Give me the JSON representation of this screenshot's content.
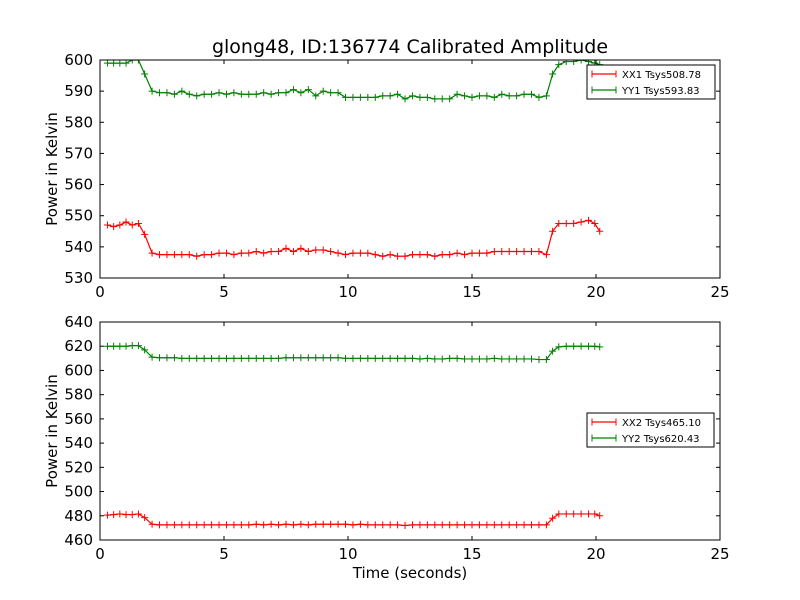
{
  "figure": {
    "title": "glong48, ID:136774 Calibrated Amplitude",
    "xlabel": "Time (seconds)"
  },
  "chart_data": [
    {
      "type": "line",
      "title": "glong48, ID:136774 Calibrated Amplitude",
      "xlabel": "",
      "ylabel": "Power in Kelvin",
      "xlim": [
        0,
        25
      ],
      "ylim": [
        530,
        600
      ],
      "xticks": [
        0,
        5,
        10,
        15,
        20,
        25
      ],
      "yticks": [
        530,
        540,
        550,
        560,
        570,
        580,
        590,
        600
      ],
      "grid": false,
      "legend_position": "upper right",
      "marker": "+",
      "series": [
        {
          "name": "XX1 Tsys508.78",
          "color": "#ff0000",
          "x": [
            0.3,
            0.55,
            0.8,
            1.05,
            1.3,
            1.55,
            1.8,
            2.1,
            2.4,
            2.7,
            3.0,
            3.3,
            3.6,
            3.9,
            4.2,
            4.5,
            4.8,
            5.1,
            5.4,
            5.7,
            6.0,
            6.3,
            6.6,
            6.9,
            7.2,
            7.5,
            7.8,
            8.1,
            8.4,
            8.7,
            9.0,
            9.3,
            9.6,
            9.9,
            10.2,
            10.5,
            10.8,
            11.1,
            11.4,
            11.7,
            12.0,
            12.3,
            12.6,
            12.9,
            13.2,
            13.5,
            13.8,
            14.1,
            14.4,
            14.7,
            15.0,
            15.3,
            15.6,
            15.9,
            16.2,
            16.5,
            16.8,
            17.1,
            17.4,
            17.7,
            18.0,
            18.25,
            18.5,
            18.8,
            19.1,
            19.4,
            19.7,
            19.95,
            20.15
          ],
          "y": [
            547,
            546.5,
            547,
            548,
            547,
            547.5,
            544,
            538,
            537.5,
            537.5,
            537.5,
            537.5,
            537.5,
            537,
            537.5,
            537.5,
            538,
            538,
            537.5,
            538,
            538,
            538.5,
            538,
            538.5,
            538.5,
            539.5,
            538.5,
            539.5,
            538.5,
            539,
            539,
            538.5,
            538,
            537.5,
            538,
            538,
            538,
            537.5,
            537,
            537.5,
            537,
            537,
            537.5,
            537.5,
            537.5,
            537,
            537.5,
            537.5,
            538,
            537.5,
            538,
            538,
            538,
            538.5,
            538.5,
            538.5,
            538.5,
            538.5,
            538.5,
            538.5,
            537.5,
            545,
            547.5,
            547.5,
            547.5,
            548,
            548.5,
            547.5,
            545
          ]
        },
        {
          "name": "YY1 Tsys593.83",
          "color": "#008000",
          "x": [
            0.3,
            0.55,
            0.8,
            1.05,
            1.3,
            1.55,
            1.8,
            2.1,
            2.4,
            2.7,
            3.0,
            3.3,
            3.6,
            3.9,
            4.2,
            4.5,
            4.8,
            5.1,
            5.4,
            5.7,
            6.0,
            6.3,
            6.6,
            6.9,
            7.2,
            7.5,
            7.8,
            8.1,
            8.4,
            8.7,
            9.0,
            9.3,
            9.6,
            9.9,
            10.2,
            10.5,
            10.8,
            11.1,
            11.4,
            11.7,
            12.0,
            12.3,
            12.6,
            12.9,
            13.2,
            13.5,
            13.8,
            14.1,
            14.4,
            14.7,
            15.0,
            15.3,
            15.6,
            15.9,
            16.2,
            16.5,
            16.8,
            17.1,
            17.4,
            17.7,
            18.0,
            18.25,
            18.5,
            18.8,
            19.1,
            19.4,
            19.7,
            19.95,
            20.15
          ],
          "y": [
            599,
            599,
            599,
            599,
            600,
            600,
            595.5,
            590,
            589.5,
            589.5,
            589,
            590,
            589,
            588.5,
            589,
            589,
            589.5,
            589,
            589.5,
            589,
            589,
            589,
            589.5,
            589,
            589.5,
            589.5,
            590.5,
            589.5,
            590.5,
            588.5,
            590,
            589.5,
            589.5,
            588,
            588,
            588,
            588,
            588,
            588.5,
            588.5,
            589,
            587.5,
            588.5,
            588,
            588,
            587.5,
            587.5,
            587.5,
            589,
            588.5,
            588,
            588.5,
            588.5,
            588,
            589,
            588.5,
            588.5,
            589,
            589,
            588,
            588.5,
            595.5,
            598.5,
            599.5,
            599.5,
            600,
            599.5,
            599,
            598.5
          ]
        }
      ]
    },
    {
      "type": "line",
      "title": "",
      "xlabel": "Time (seconds)",
      "ylabel": "Power in Kelvin",
      "xlim": [
        0,
        25
      ],
      "ylim": [
        460,
        640
      ],
      "xticks": [
        0,
        5,
        10,
        15,
        20,
        25
      ],
      "yticks": [
        460,
        480,
        500,
        520,
        540,
        560,
        580,
        600,
        620,
        640
      ],
      "grid": false,
      "legend_position": "center right",
      "marker": "+",
      "series": [
        {
          "name": "XX2 Tsys465.10",
          "color": "#ff0000",
          "x": [
            0.3,
            0.55,
            0.8,
            1.05,
            1.3,
            1.55,
            1.8,
            2.1,
            2.4,
            2.7,
            3.0,
            3.3,
            3.6,
            3.9,
            4.2,
            4.5,
            4.8,
            5.1,
            5.4,
            5.7,
            6.0,
            6.3,
            6.6,
            6.9,
            7.2,
            7.5,
            7.8,
            8.1,
            8.4,
            8.7,
            9.0,
            9.3,
            9.6,
            9.9,
            10.2,
            10.5,
            10.8,
            11.1,
            11.4,
            11.7,
            12.0,
            12.3,
            12.6,
            12.9,
            13.2,
            13.5,
            13.8,
            14.1,
            14.4,
            14.7,
            15.0,
            15.3,
            15.6,
            15.9,
            16.2,
            16.5,
            16.8,
            17.1,
            17.4,
            17.7,
            18.0,
            18.25,
            18.5,
            18.8,
            19.1,
            19.4,
            19.7,
            19.95,
            20.15
          ],
          "y": [
            480.5,
            481,
            481.5,
            481,
            481,
            481.5,
            478.5,
            473,
            472.5,
            472.5,
            472.5,
            472.5,
            472.5,
            472.5,
            472.5,
            472.5,
            472.5,
            472.5,
            472.5,
            472.5,
            472.5,
            473,
            472.5,
            473,
            472.5,
            473,
            472.5,
            473,
            472.5,
            473,
            473,
            473,
            473,
            473,
            472.5,
            473,
            472.5,
            472.5,
            472.5,
            472.5,
            472.5,
            472,
            472.5,
            472.5,
            472.5,
            472.5,
            472.5,
            472.5,
            472.5,
            472.5,
            472.5,
            472.5,
            472.5,
            472.5,
            472.5,
            472.5,
            472.5,
            472.5,
            472.5,
            472.5,
            472.5,
            478,
            481.5,
            481.5,
            481.5,
            481.5,
            481.5,
            481.5,
            480
          ]
        },
        {
          "name": "YY2 Tsys620.43",
          "color": "#008000",
          "x": [
            0.3,
            0.55,
            0.8,
            1.05,
            1.3,
            1.55,
            1.8,
            2.1,
            2.4,
            2.7,
            3.0,
            3.3,
            3.6,
            3.9,
            4.2,
            4.5,
            4.8,
            5.1,
            5.4,
            5.7,
            6.0,
            6.3,
            6.6,
            6.9,
            7.2,
            7.5,
            7.8,
            8.1,
            8.4,
            8.7,
            9.0,
            9.3,
            9.6,
            9.9,
            10.2,
            10.5,
            10.8,
            11.1,
            11.4,
            11.7,
            12.0,
            12.3,
            12.6,
            12.9,
            13.2,
            13.5,
            13.8,
            14.1,
            14.4,
            14.7,
            15.0,
            15.3,
            15.6,
            15.9,
            16.2,
            16.5,
            16.8,
            17.1,
            17.4,
            17.7,
            18.0,
            18.25,
            18.5,
            18.8,
            19.1,
            19.4,
            19.7,
            19.95,
            20.15
          ],
          "y": [
            620,
            620,
            620,
            620,
            620.5,
            620.5,
            617,
            611,
            610.5,
            610.5,
            610.5,
            610,
            610,
            610,
            610,
            610,
            610,
            610,
            610,
            610,
            610,
            610,
            610,
            610,
            610,
            610.5,
            610.5,
            610.5,
            610.5,
            610.5,
            610.5,
            610.5,
            610.5,
            610,
            610,
            610,
            610,
            610,
            610,
            610,
            610,
            610,
            610,
            609.5,
            610,
            609.5,
            609.5,
            610,
            610,
            609.5,
            609.5,
            609.5,
            609.5,
            610,
            609.5,
            609.5,
            609.5,
            609.5,
            609.5,
            609,
            609,
            616,
            619.5,
            620,
            620,
            620,
            620,
            620,
            619.5
          ]
        }
      ]
    }
  ]
}
